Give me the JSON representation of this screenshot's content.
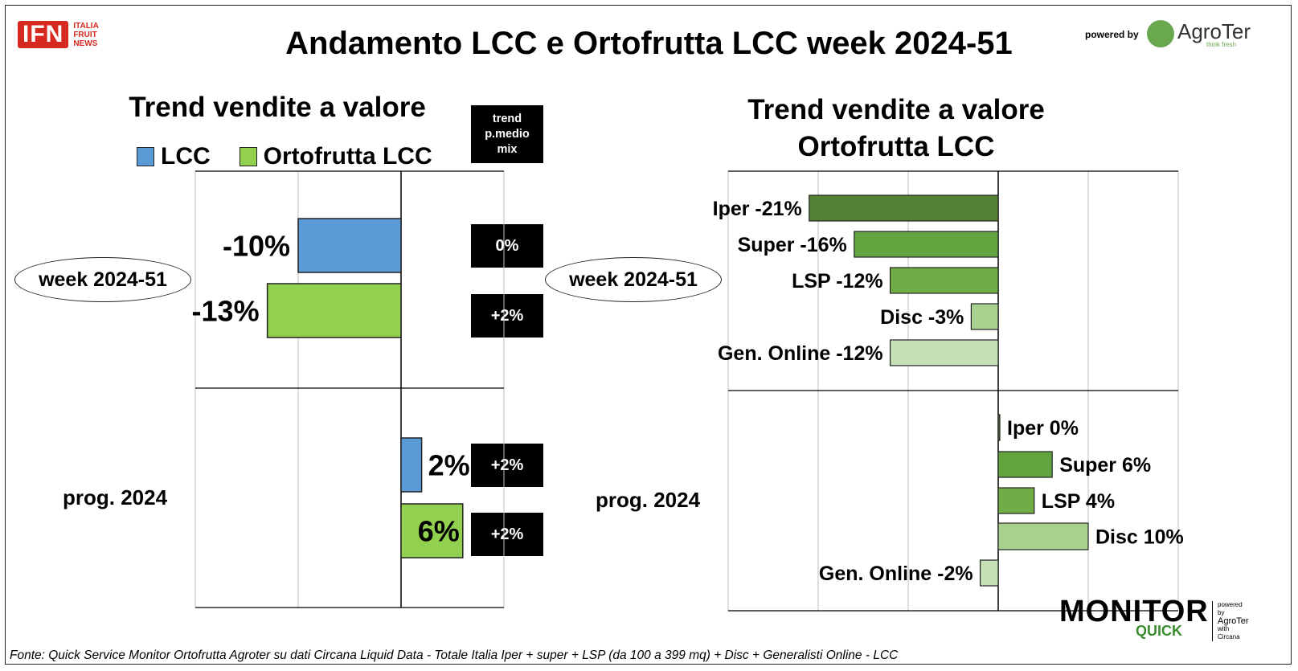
{
  "header": {
    "title": "Andamento LCC e Ortofrutta LCC week 2024-51",
    "logo_left": [
      "ITALIA",
      "FRUIT",
      "NEWS"
    ],
    "logo_left_mark": "IFN",
    "powered_by": "powered by",
    "logo_right": "AgroTer",
    "logo_right_tagline": "think fresh"
  },
  "colors": {
    "lcc": "#5b9bd5",
    "ortofrutta": "#92d050",
    "iper": "#548235",
    "super": "#62a340",
    "lsp": "#70ad47",
    "disc": "#a9d18e",
    "online": "#c5e0b4"
  },
  "chart_data": [
    {
      "type": "bar",
      "orientation": "horizontal",
      "title": "Trend vendite a valore",
      "categories": [
        "week 2024-51",
        "prog. 2024"
      ],
      "series": [
        {
          "name": "LCC",
          "values": [
            -10,
            2
          ],
          "labels": [
            "-10%",
            "2%"
          ]
        },
        {
          "name": "Ortofrutta LCC",
          "values": [
            -13,
            6
          ],
          "labels": [
            "-13%",
            "6%"
          ]
        }
      ],
      "xlim": [
        -20,
        10
      ],
      "grid": true,
      "legend": "top",
      "side_table": {
        "header": [
          "trend",
          "p.medio",
          "mix"
        ],
        "values": [
          [
            "0%",
            "+2%"
          ],
          [
            "+2%",
            "+2%"
          ]
        ]
      }
    },
    {
      "type": "bar",
      "orientation": "horizontal",
      "title": [
        "Trend vendite a valore",
        "Ortofrutta LCC"
      ],
      "groups": [
        {
          "name": "week 2024-51",
          "categories": [
            "Iper",
            "Super",
            "LSP",
            "Disc",
            "Gen. Online"
          ],
          "values": [
            -21,
            -16,
            -12,
            -3,
            -12
          ],
          "labels": [
            "Iper -21%",
            "Super -16%",
            "LSP -12%",
            "Disc -3%",
            "Gen. Online -12%"
          ]
        },
        {
          "name": "prog. 2024",
          "categories": [
            "Iper",
            "Super",
            "LSP",
            "Disc",
            "Gen. Online"
          ],
          "values": [
            0,
            6,
            4,
            10,
            -2
          ],
          "labels": [
            "Iper 0%",
            "Super 6%",
            "LSP 4%",
            "Disc 10%",
            "Gen. Online -2%"
          ]
        }
      ],
      "xlim": [
        -30,
        20
      ],
      "grid": true
    }
  ],
  "footer": {
    "source": "Fonte: Quick Service Monitor Ortofrutta Agroter su dati Circana Liquid Data - Totale Italia Iper + super + LSP (da 100 a 399 mq) + Disc + Generalisti Online - LCC",
    "brand_main": "MONITOR",
    "brand_sub": "QUICK",
    "brand_side": [
      "powered by",
      "AgroTer",
      "with",
      "Circana"
    ]
  }
}
